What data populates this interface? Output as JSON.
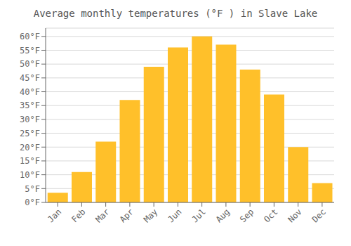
{
  "chart_data": {
    "type": "bar",
    "title": "Average monthly temperatures (°F ) in Slave Lake",
    "categories": [
      "Jan",
      "Feb",
      "Mar",
      "Apr",
      "May",
      "Jun",
      "Jul",
      "Aug",
      "Sep",
      "Oct",
      "Nov",
      "Dec"
    ],
    "values": [
      3.5,
      11.0,
      22.0,
      37.0,
      49.0,
      56.0,
      60.0,
      57.0,
      48.0,
      39.0,
      20.0,
      7.0
    ],
    "color": "#FFC02A",
    "ylim": [
      0,
      63
    ],
    "yticks": [
      {
        "value": 0,
        "label": "0°F"
      },
      {
        "value": 5,
        "label": "5°F"
      },
      {
        "value": 10,
        "label": "10°F"
      },
      {
        "value": 15,
        "label": "15°F"
      },
      {
        "value": 20,
        "label": "20°F"
      },
      {
        "value": 25,
        "label": "25°F"
      },
      {
        "value": 30,
        "label": "30°F"
      },
      {
        "value": 35,
        "label": "35°F"
      },
      {
        "value": 40,
        "label": "40°F"
      },
      {
        "value": 45,
        "label": "45°F"
      },
      {
        "value": 50,
        "label": "50°F"
      },
      {
        "value": 55,
        "label": "55°F"
      },
      {
        "value": 60,
        "label": "60°F"
      }
    ],
    "grid": true
  }
}
